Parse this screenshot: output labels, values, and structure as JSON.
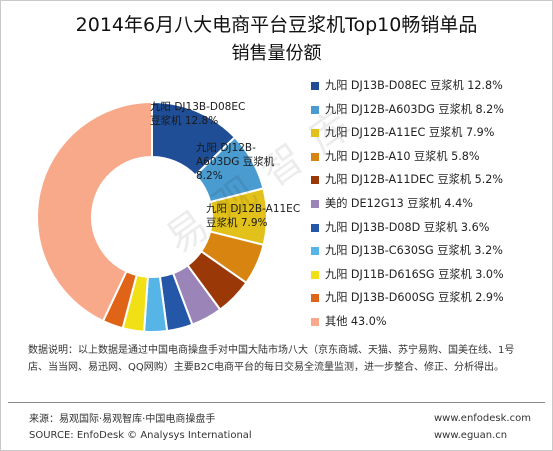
{
  "title_line1": "2014年6月八大电商平台豆浆机Top10畅销单品",
  "title_line2": "销售量份额",
  "watermark": "易观智库",
  "note": "数据说明：以上数据是通过中国电商操盘手对中国大陆市场八大（京东商城、天猫、苏宁易购、国美在线、1号店、当当网、易迅网、QQ网购）主要B2C电商平台的每日交易全流量监测，进一步整合、修正、分析得出。",
  "footer": {
    "source_cn": "来源：易观国际·易观智库·中国电商操盘手",
    "source_en": "SOURCE: EnfoDesk © Analysys International",
    "site1": "www.enfodesk.com",
    "site2": "www.eguan.cn"
  },
  "chart_data": {
    "type": "pie",
    "title": "2014年6月八大电商平台豆浆机Top10畅销单品销售量份额",
    "legend_position": "right",
    "slices": [
      {
        "legend": "九阳 DJ13B-D08EC 豆浆机 12.8%",
        "name": "九阳 DJ13B-D08EC 豆浆机",
        "value": 12.8,
        "color": "#1f4e96",
        "label_lines": [
          "九阳 DJ13B-D08EC",
          "豆浆机 12.8%"
        ]
      },
      {
        "legend": "九阳 DJ12B-A603DG 豆浆机 8.2%",
        "name": "九阳 DJ12B-A603DG 豆浆机",
        "value": 8.2,
        "color": "#4a9bd0",
        "label_lines": [
          "九阳 DJ12B-",
          "A603DG 豆浆机",
          "8.2%"
        ]
      },
      {
        "legend": "九阳 DJ12B-A11EC 豆浆机 7.9%",
        "name": "九阳 DJ12B-A11EC 豆浆机",
        "value": 7.9,
        "color": "#e2c11a",
        "label_lines": [
          "九阳 DJ12B-A11EC",
          "豆浆机 7.9%"
        ]
      },
      {
        "legend": "九阳 DJ12B-A10 豆浆机 5.8%",
        "name": "九阳 DJ12B-A10 豆浆机",
        "value": 5.8,
        "color": "#d88410"
      },
      {
        "legend": "九阳 DJ12B-A11DEC 豆浆机 5.2%",
        "name": "九阳 DJ12B-A11DEC 豆浆机",
        "value": 5.2,
        "color": "#9a3808"
      },
      {
        "legend": "美的 DE12G13 豆浆机 4.4%",
        "name": "美的 DE12G13 豆浆机",
        "value": 4.4,
        "color": "#9b84b8"
      },
      {
        "legend": "九阳 DJ13B-D08D 豆浆机 3.6%",
        "name": "九阳 DJ13B-D08D 豆浆机",
        "value": 3.6,
        "color": "#2457a8"
      },
      {
        "legend": "九阳 DJ13B-C630SG 豆浆机 3.2%",
        "name": "九阳 DJ13B-C630SG 豆浆机",
        "value": 3.2,
        "color": "#56b4e6"
      },
      {
        "legend": "九阳 DJ11B-D616SG 豆浆机 3.0%",
        "name": "九阳 DJ11B-D616SG 豆浆机",
        "value": 3.0,
        "color": "#f2e016"
      },
      {
        "legend": "九阳 DJ13B-D600SG 豆浆机 2.9%",
        "name": "九阳 DJ13B-D600SG 豆浆机",
        "value": 2.9,
        "color": "#e06418"
      },
      {
        "legend": "其他 43.0%",
        "name": "其他",
        "value": 43.0,
        "color": "#f7a98a"
      }
    ]
  }
}
